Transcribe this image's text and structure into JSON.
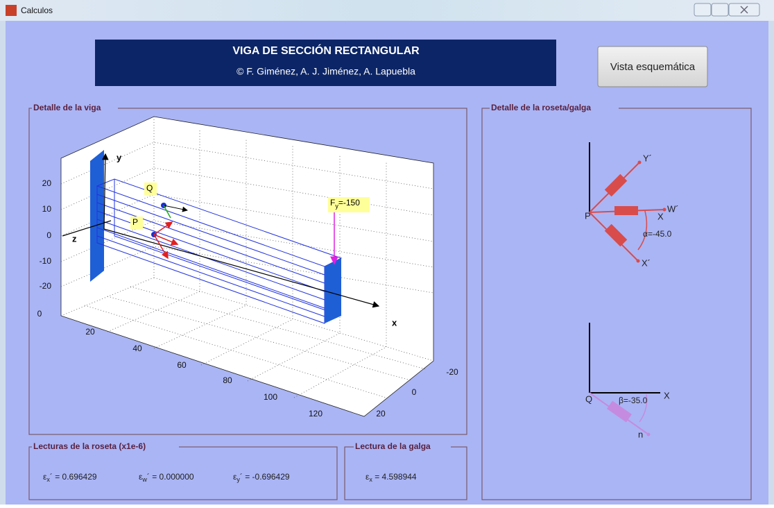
{
  "window": {
    "title": "Calculos"
  },
  "header": {
    "title": "VIGA DE SECCIÓN RECTANGULAR",
    "authors": "© F. Giménez, A. J. Jiménez, A. Lapuebla"
  },
  "button": "Vista esquemática",
  "beam_panel": {
    "title": "Detalle de la viga",
    "y_ticks": [
      20,
      10,
      0,
      -10,
      -20
    ],
    "x_ticks": [
      0,
      20,
      40,
      60,
      80,
      100,
      120
    ],
    "z_ticks": [
      -20,
      0,
      20
    ],
    "axis_labels": {
      "x": "x",
      "y": "y",
      "z": "z"
    },
    "points": [
      "Q",
      "P"
    ],
    "force_label": {
      "main": "F",
      "sub": "y",
      "rest": "=-150"
    }
  },
  "rosette_panel": {
    "title": "Detalle de la roseta/galga",
    "rosette": {
      "point": "P",
      "y_axis": "Y´",
      "w_axis": "W´",
      "x_axis": "X",
      "x_gauge": "X´",
      "angle": "α=-45.0"
    },
    "gauge": {
      "point": "Q",
      "x_axis": "X",
      "angle": "β=-35.0",
      "n_axis": "n"
    }
  },
  "rosette_readings": {
    "title": "Lecturas de la roseta (x1e-6)",
    "items": [
      {
        "symbol": "ε",
        "sub": "x",
        "rest": "´ = 0.696429"
      },
      {
        "symbol": "ε",
        "sub": "w",
        "rest": "´ = 0.000000"
      },
      {
        "symbol": "ε",
        "sub": "y",
        "rest": "´ = -0.696429"
      }
    ]
  },
  "gauge_reading": {
    "title": "Lectura de la galga",
    "item": {
      "symbol": "ε",
      "sub": "x",
      "rest": " = 4.598944"
    }
  }
}
